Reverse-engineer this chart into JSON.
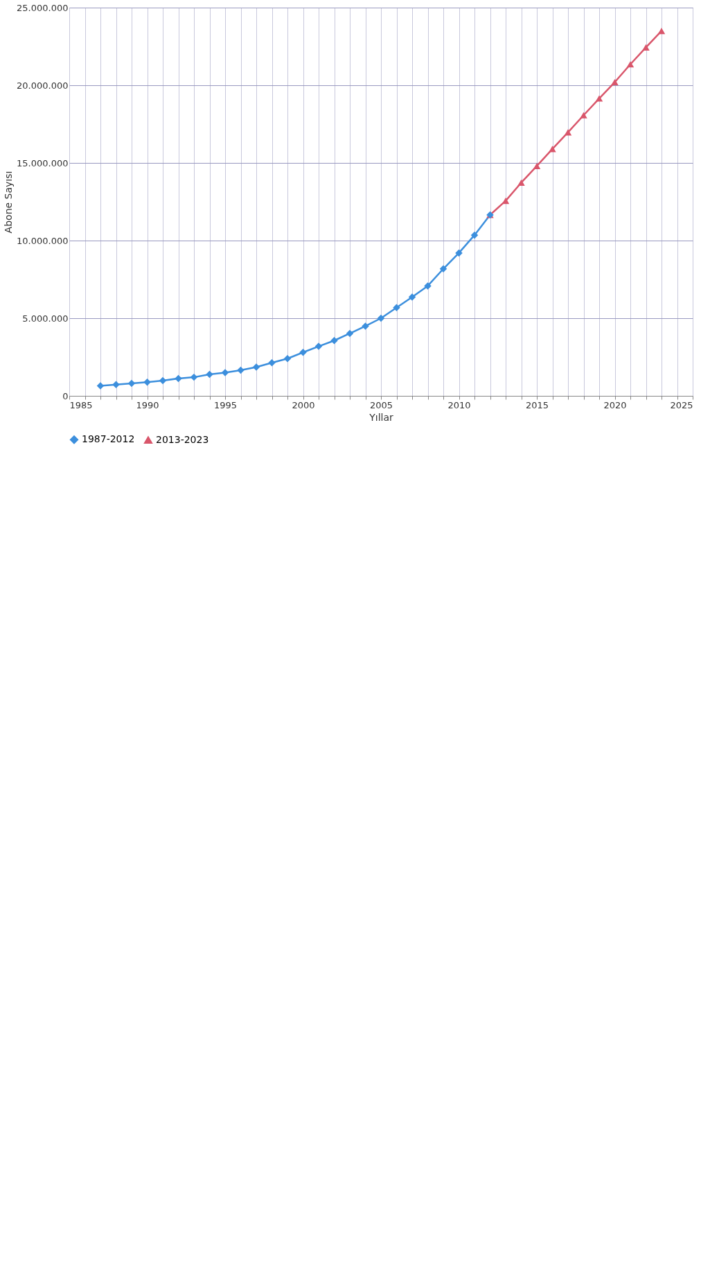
{
  "chart_data": {
    "type": "line",
    "xlabel": "Yıllar",
    "ylabel": "Abone Sayısı",
    "xlim": [
      1985,
      2025
    ],
    "xticks": [
      1985,
      {
        "value": 1986,
        "label": null
      },
      {
        "value": 1987,
        "label": null
      },
      {
        "value": 1988,
        "label": null
      },
      {
        "value": 1989,
        "label": null
      },
      1990,
      {
        "value": 1991,
        "label": null
      },
      {
        "value": 1992,
        "label": null
      },
      {
        "value": 1993,
        "label": null
      },
      {
        "value": 1994,
        "label": null
      },
      1995,
      {
        "value": 1996,
        "label": null
      },
      {
        "value": 1997,
        "label": null
      },
      {
        "value": 1998,
        "label": null
      },
      {
        "value": 1999,
        "label": null
      },
      2000,
      {
        "value": 2001,
        "label": null
      },
      {
        "value": 2002,
        "label": null
      },
      {
        "value": 2003,
        "label": null
      },
      {
        "value": 2004,
        "label": null
      },
      2005,
      {
        "value": 2006,
        "label": null
      },
      {
        "value": 2007,
        "label": null
      },
      {
        "value": 2008,
        "label": null
      },
      {
        "value": 2009,
        "label": null
      },
      2010,
      {
        "value": 2011,
        "label": null
      },
      {
        "value": 2012,
        "label": null
      },
      {
        "value": 2013,
        "label": null
      },
      {
        "value": 2014,
        "label": null
      },
      2015,
      {
        "value": 2016,
        "label": null
      },
      {
        "value": 2017,
        "label": null
      },
      {
        "value": 2018,
        "label": null
      },
      {
        "value": 2019,
        "label": null
      },
      2020,
      {
        "value": 2021,
        "label": null
      },
      {
        "value": 2022,
        "label": null
      },
      {
        "value": 2023,
        "label": null
      },
      {
        "value": 2024,
        "label": null
      },
      2025
    ],
    "ylim": [
      0,
      25000000
    ],
    "yticks": [
      0,
      {
        "value": 5000000,
        "label": "5.000.000"
      },
      {
        "value": 10000000,
        "label": "10.000.000"
      },
      {
        "value": 15000000,
        "label": "15.000.000"
      },
      {
        "value": 20000000,
        "label": "20.000.000"
      },
      {
        "value": 25000000,
        "label": "25.000.000"
      }
    ],
    "grid": true,
    "legend": "bottom",
    "line_style": "solid",
    "series": [
      {
        "name": "1987-2012",
        "color": "#3c8fdd",
        "marker": "diamond",
        "x": [
          1987,
          1988,
          1989,
          1990,
          1991,
          1992,
          1993,
          1994,
          1995,
          1996,
          1997,
          1998,
          1999,
          2000,
          2001,
          2002,
          2003,
          2004,
          2005,
          2006,
          2007,
          2008,
          2009,
          2010,
          2011,
          2012
        ],
        "values": [
          650000,
          730000,
          800000,
          880000,
          980000,
          1120000,
          1200000,
          1380000,
          1500000,
          1650000,
          1850000,
          2130000,
          2400000,
          2800000,
          3190000,
          3560000,
          4020000,
          4490000,
          5000000,
          5680000,
          6360000,
          7080000,
          8180000,
          9200000,
          10350000,
          11650000
        ]
      },
      {
        "name": "2013-2023",
        "color": "#d9566b",
        "marker": "triangle",
        "x": [
          2012,
          2013,
          2014,
          2015,
          2016,
          2017,
          2018,
          2019,
          2020,
          2021,
          2022,
          2023
        ],
        "values": [
          11650000,
          12560000,
          13730000,
          14800000,
          15900000,
          16970000,
          18070000,
          19150000,
          20200000,
          21350000,
          22440000,
          23500000
        ]
      }
    ]
  }
}
